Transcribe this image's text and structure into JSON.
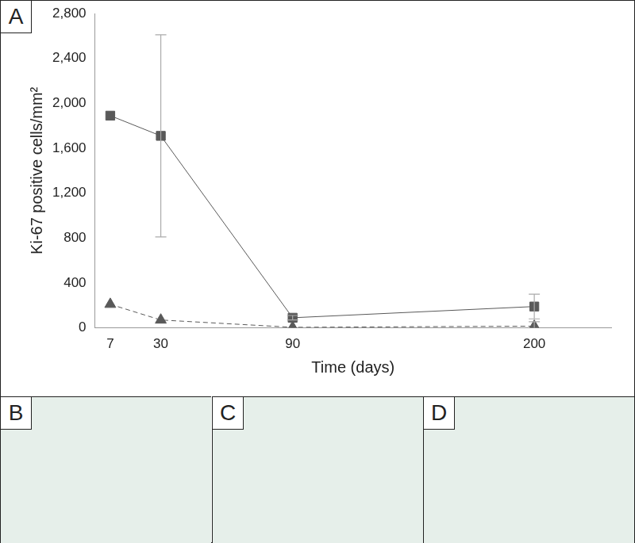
{
  "panel_labels": [
    "A",
    "B",
    "C",
    "D"
  ],
  "chart_data": {
    "type": "line",
    "x_label": "Time (days)",
    "y_label": "Ki-67 positive cells/mm²",
    "x": [
      7,
      30,
      90,
      200
    ],
    "series": [
      {
        "color": "#595959",
        "marker": "square",
        "line_style": "solid",
        "values": [
          1890,
          1710,
          90,
          190
        ],
        "errors": [
          0,
          900,
          20,
          110
        ]
      },
      {
        "color": "#595959",
        "marker": "triangle",
        "line_style": "dashed",
        "values": [
          210,
          70,
          5,
          15
        ],
        "errors": [
          0,
          0,
          0,
          40
        ]
      }
    ],
    "xlim": [
      0,
      235
    ],
    "xticks": [
      7,
      30,
      90,
      200
    ],
    "ylim": [
      0,
      2800
    ],
    "yticks": [
      0,
      400,
      800,
      1200,
      1600,
      2000,
      2400,
      2800
    ],
    "grid": false
  }
}
